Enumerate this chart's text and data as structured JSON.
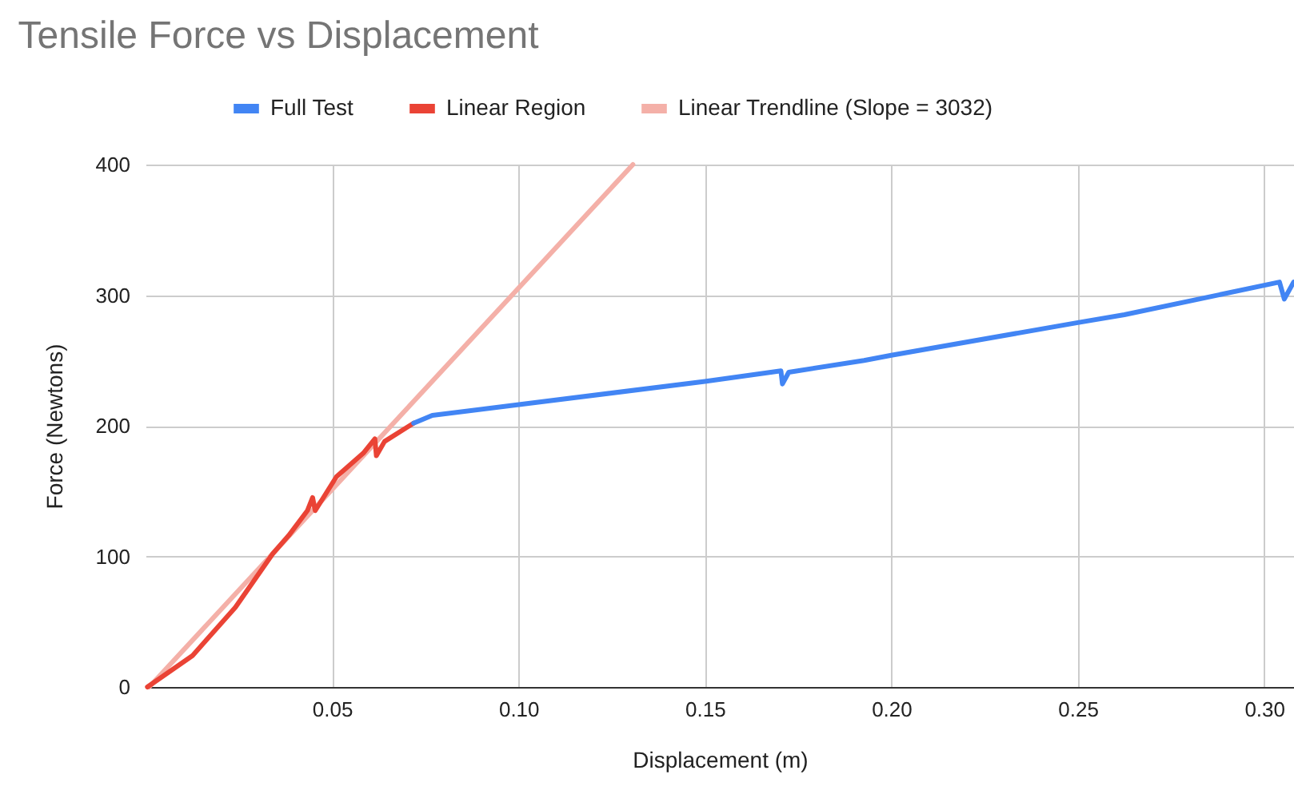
{
  "chart_data": {
    "type": "line",
    "title": "Tensile Force vs Displacement",
    "xlabel": "Displacement (m)",
    "ylabel": "Force (Newtons)",
    "series": [
      {
        "name": "Full Test",
        "color": "#4285f4",
        "x": [
          0.0719,
          0.0769,
          0.0997,
          0.15,
          0.1704,
          0.1708,
          0.1725,
          0.1927,
          0.2,
          0.25,
          0.2625,
          0.3041,
          0.3054,
          0.3079
        ],
        "values": [
          202,
          208,
          216,
          234,
          242,
          232,
          241,
          250,
          254,
          279,
          285,
          310,
          297,
          310
        ]
      },
      {
        "name": "Linear Region",
        "color": "#ea4335",
        "x": [
          0.0005,
          0.0126,
          0.0241,
          0.0341,
          0.0384,
          0.0434,
          0.0448,
          0.0455,
          0.0512,
          0.0584,
          0.0615,
          0.0619,
          0.0641,
          0.0719
        ],
        "values": [
          0,
          24,
          61,
          102,
          116,
          135,
          145,
          135,
          161,
          179,
          190,
          177,
          188,
          202
        ]
      },
      {
        "name": "Linear Trendline (Slope = 3032)",
        "color": "#f4b0a8",
        "x": [
          0.001,
          0.1307
        ],
        "values": [
          0,
          400
        ]
      }
    ],
    "xlim": [
      0,
      0.308
    ],
    "ylim": [
      0,
      400
    ],
    "xticks": [
      0.05,
      {
        "value": 0.1,
        "label": "0.10"
      },
      0.15,
      {
        "value": 0.2,
        "label": "0.20"
      },
      0.25,
      {
        "value": 0.3,
        "label": "0.30"
      }
    ],
    "yticks": [
      0,
      100,
      200,
      300,
      400
    ],
    "grid": true,
    "legend": "top",
    "line_style": "solid"
  }
}
